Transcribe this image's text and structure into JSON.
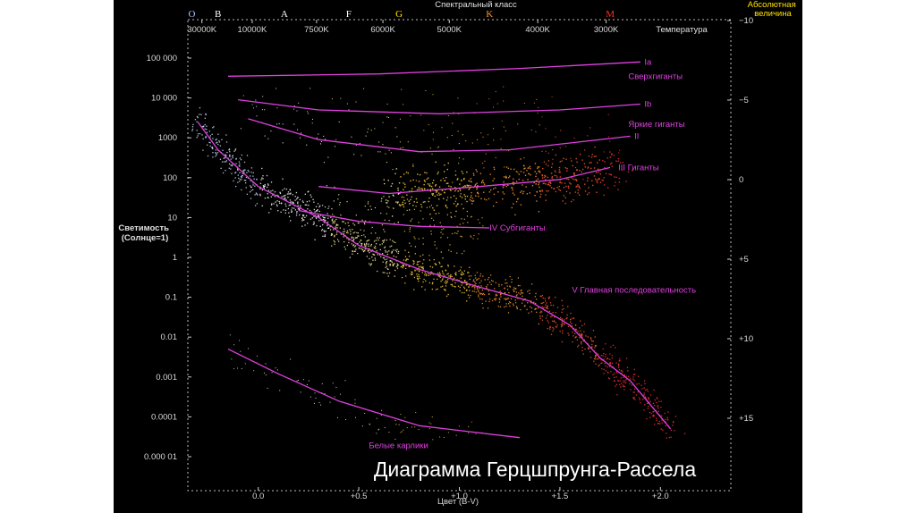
{
  "chart_data": {
    "type": "scatter",
    "title": "Диаграмма Герцшпрунга-Рассела",
    "xlabel": "Цвет (B-V)",
    "ylabel_left": "Светимость (Солнце=1)",
    "top_axis_label": "Спектральный класс",
    "temperature_label": "Температура",
    "right_axis_label": "Абсолютная величина",
    "x_axis": {
      "range": [
        -0.35,
        2.35
      ],
      "ticks": [
        {
          "value": 0.0,
          "label": "0.0"
        },
        {
          "value": 0.5,
          "label": "+0.5"
        },
        {
          "value": 1.0,
          "label": "+1.0"
        },
        {
          "value": 1.5,
          "label": "+1.5"
        },
        {
          "value": 2.0,
          "label": "+2.0"
        }
      ]
    },
    "y_axis_left": {
      "scale": "log",
      "range": [
        5e-06,
        500000
      ],
      "ticks": [
        {
          "value": 100000,
          "label": "100 000"
        },
        {
          "value": 10000,
          "label": "10 000"
        },
        {
          "value": 1000,
          "label": "1000"
        },
        {
          "value": 100,
          "label": "100"
        },
        {
          "value": 10,
          "label": "10"
        },
        {
          "value": 1,
          "label": "1"
        },
        {
          "value": 0.1,
          "label": "0.1"
        },
        {
          "value": 0.01,
          "label": "0.01"
        },
        {
          "value": 0.001,
          "label": "0.001"
        },
        {
          "value": 0.0001,
          "label": "0.0001"
        },
        {
          "value": 1e-05,
          "label": "0.000 01"
        }
      ]
    },
    "y_axis_right": {
      "ticks": [
        {
          "mag": -10,
          "label": "−10"
        },
        {
          "mag": -5,
          "label": "−5"
        },
        {
          "mag": 0,
          "label": "0"
        },
        {
          "mag": 5,
          "label": "+5"
        },
        {
          "mag": 10,
          "label": "+10"
        },
        {
          "mag": 15,
          "label": "+15"
        }
      ]
    },
    "spectral_classes": [
      {
        "label": "O",
        "bv": -0.33,
        "color": "#a8c8ff"
      },
      {
        "label": "B",
        "bv": -0.2,
        "color": "#ffffff"
      },
      {
        "label": "A",
        "bv": 0.13,
        "color": "#ffffff"
      },
      {
        "label": "F",
        "bv": 0.45,
        "color": "#ffffff"
      },
      {
        "label": "G",
        "bv": 0.7,
        "color": "#ffe000"
      },
      {
        "label": "K",
        "bv": 1.15,
        "color": "#ff9030"
      },
      {
        "label": "M",
        "bv": 1.75,
        "color": "#ff3020"
      }
    ],
    "temperatures": [
      {
        "label": "30000K",
        "bv": -0.28
      },
      {
        "label": "10000K",
        "bv": -0.03
      },
      {
        "label": "7500K",
        "bv": 0.29
      },
      {
        "label": "6000K",
        "bv": 0.62
      },
      {
        "label": "5000K",
        "bv": 0.95
      },
      {
        "label": "4000K",
        "bv": 1.39
      },
      {
        "label": "3000K",
        "bv": 1.73
      }
    ],
    "luminosity_classes": [
      {
        "label": "Ia",
        "points": [
          [
            -0.15,
            35000
          ],
          [
            0.6,
            40000
          ],
          [
            1.3,
            55000
          ],
          [
            1.9,
            80000
          ]
        ]
      },
      {
        "label": "Ib",
        "points": [
          [
            -0.1,
            9000
          ],
          [
            0.3,
            5000
          ],
          [
            0.9,
            4000
          ],
          [
            1.5,
            5000
          ],
          [
            1.9,
            7000
          ]
        ]
      },
      {
        "label": "II",
        "points": [
          [
            -0.05,
            3000
          ],
          [
            0.3,
            900
          ],
          [
            0.8,
            450
          ],
          [
            1.25,
            500
          ],
          [
            1.85,
            1100
          ]
        ]
      },
      {
        "label": "III",
        "points": [
          [
            0.3,
            60
          ],
          [
            0.65,
            40
          ],
          [
            1.1,
            60
          ],
          [
            1.5,
            90
          ],
          [
            1.75,
            180
          ]
        ]
      },
      {
        "label": "IV",
        "points": [
          [
            0.2,
            15
          ],
          [
            0.5,
            8
          ],
          [
            0.8,
            6
          ],
          [
            1.15,
            5.5
          ]
        ]
      },
      {
        "label": "V",
        "points": [
          [
            -0.3,
            2500
          ],
          [
            -0.2,
            500
          ],
          [
            0.0,
            60
          ],
          [
            0.3,
            10
          ],
          [
            0.5,
            2
          ],
          [
            0.8,
            0.5
          ],
          [
            1.1,
            0.18
          ],
          [
            1.35,
            0.08
          ],
          [
            1.55,
            0.02
          ],
          [
            1.7,
            0.003
          ],
          [
            1.85,
            0.0008
          ],
          [
            2.05,
            5e-05
          ]
        ]
      },
      {
        "label": "Белые карлики",
        "points": [
          [
            -0.15,
            0.005
          ],
          [
            0.1,
            0.0012
          ],
          [
            0.4,
            0.00025
          ],
          [
            0.8,
            6e-05
          ],
          [
            1.3,
            3e-05
          ]
        ]
      }
    ],
    "series_labels": [
      {
        "key": "Ia",
        "text": "Ia",
        "bv": 1.92,
        "lum": 80000
      },
      {
        "key": "supergiants",
        "text": "Сверхгиганты",
        "bv": 1.84,
        "lum": 35000
      },
      {
        "key": "Ib",
        "text": "Ib",
        "bv": 1.92,
        "lum": 7000
      },
      {
        "key": "bright_giants",
        "text": "Яркие гиганты",
        "bv": 1.84,
        "lum": 2200
      },
      {
        "key": "II",
        "text": "II",
        "bv": 1.87,
        "lum": 1100
      },
      {
        "key": "giants",
        "text": "III  Гиганты",
        "bv": 1.79,
        "lum": 180
      },
      {
        "key": "subgiants",
        "text": "IV  Субгиганты",
        "bv": 1.15,
        "lum": 5.5
      },
      {
        "key": "main_sequence",
        "text": "V  Главная последовательность",
        "bv": 1.56,
        "lum": 0.15
      },
      {
        "key": "white_dwarfs",
        "text": "Белые карлики",
        "bv": 0.55,
        "lum": 1.9e-05
      }
    ],
    "grid": false,
    "background": "#000000",
    "line_color": "#e040e0"
  }
}
